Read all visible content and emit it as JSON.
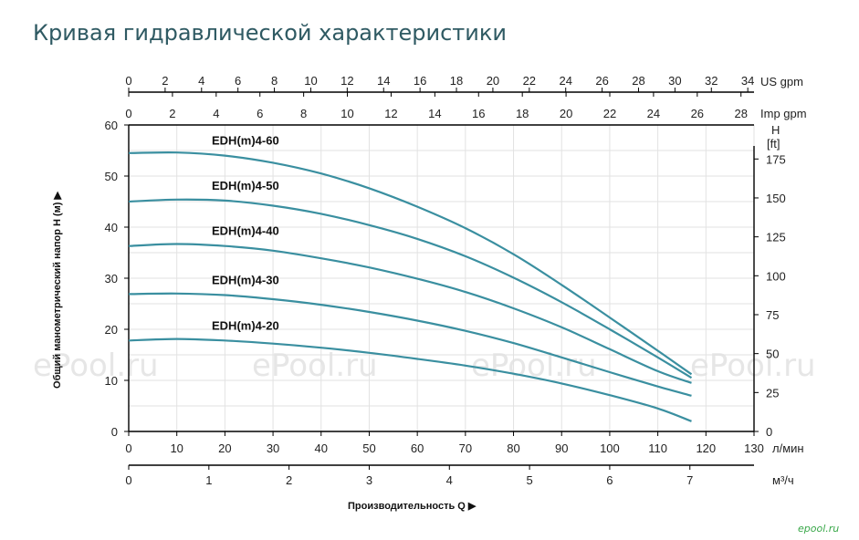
{
  "page": {
    "title": "Кривая гидравлической характеристики"
  },
  "watermark": {
    "text": "ePool.ru",
    "logo": "epool.ru"
  },
  "colors": {
    "curve": "#3a8fa0",
    "grid": "#e2e2e2",
    "axis": "#000000",
    "title": "#2f5a63"
  },
  "chart_data": {
    "type": "line",
    "x": {
      "label": "Производительность Q",
      "unit": "л/мин",
      "range": [
        0,
        130
      ],
      "ticks": [
        "0",
        "10",
        "20",
        "30",
        "40",
        "50",
        "60",
        "70",
        "80",
        "90",
        "100",
        "110",
        "120",
        "130"
      ]
    },
    "x_m3h": {
      "unit": "м³/ч",
      "ticks": [
        "0",
        "1",
        "2",
        "3",
        "4",
        "5",
        "6",
        "7"
      ]
    },
    "x_usgpm": {
      "unit": "US gpm",
      "ticks": [
        "0",
        "2",
        "4",
        "6",
        "8",
        "10",
        "12",
        "14",
        "16",
        "18",
        "20",
        "22",
        "24",
        "26",
        "28",
        "30",
        "32",
        "34"
      ]
    },
    "x_impgpm": {
      "unit": "Imp gpm",
      "ticks": [
        "0",
        "2",
        "4",
        "6",
        "8",
        "10",
        "12",
        "14",
        "16",
        "18",
        "20",
        "22",
        "24",
        "26",
        "28"
      ]
    },
    "y": {
      "label": "Общий манометрический напор H (м)",
      "range": [
        0,
        60
      ],
      "ticks": [
        "0",
        "10",
        "20",
        "30",
        "40",
        "50",
        "60"
      ]
    },
    "y_ft": {
      "title": "H",
      "unit": "[ft]",
      "ticks": [
        "0",
        "25",
        "50",
        "75",
        "100",
        "125",
        "150",
        "175"
      ]
    },
    "grid": true,
    "series": [
      {
        "name": "EDH(m)4-60",
        "x": [
          0,
          10,
          20,
          30,
          40,
          50,
          60,
          70,
          80,
          90,
          100,
          110,
          117
        ],
        "y": [
          54.5,
          54.6,
          54.0,
          52.6,
          50.5,
          47.6,
          44.0,
          39.8,
          34.7,
          28.7,
          22.3,
          15.8,
          11.2
        ]
      },
      {
        "name": "EDH(m)4-50",
        "x": [
          0,
          10,
          20,
          30,
          40,
          50,
          60,
          70,
          80,
          90,
          100,
          110,
          117
        ],
        "y": [
          45.0,
          45.4,
          45.2,
          44.2,
          42.6,
          40.4,
          37.7,
          34.3,
          30.1,
          25.3,
          20.0,
          14.5,
          10.5
        ]
      },
      {
        "name": "EDH(m)4-40",
        "x": [
          0,
          10,
          20,
          30,
          40,
          50,
          60,
          70,
          80,
          90,
          100,
          110,
          117
        ],
        "y": [
          36.3,
          36.7,
          36.3,
          35.4,
          33.9,
          32.1,
          29.9,
          27.3,
          24.1,
          20.4,
          16.1,
          11.8,
          9.5
        ]
      },
      {
        "name": "EDH(m)4-30",
        "x": [
          0,
          10,
          20,
          30,
          40,
          50,
          60,
          70,
          80,
          90,
          100,
          110,
          117
        ],
        "y": [
          26.9,
          27.0,
          26.7,
          25.9,
          24.8,
          23.4,
          21.7,
          19.7,
          17.3,
          14.5,
          11.6,
          8.8,
          7.0
        ]
      },
      {
        "name": "EDH(m)4-20",
        "x": [
          0,
          10,
          20,
          30,
          40,
          50,
          60,
          70,
          80,
          90,
          100,
          110,
          117
        ],
        "y": [
          17.8,
          18.1,
          17.8,
          17.2,
          16.4,
          15.4,
          14.2,
          12.9,
          11.3,
          9.4,
          7.1,
          4.5,
          2.0
        ]
      }
    ]
  }
}
